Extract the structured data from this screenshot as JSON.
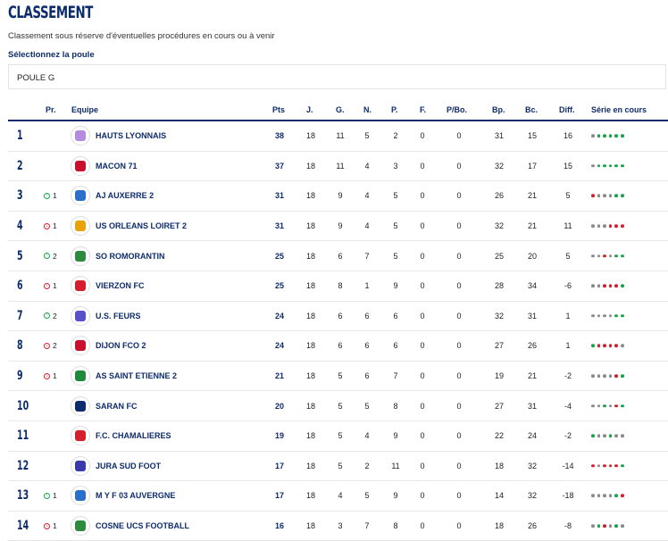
{
  "title": "CLASSEMENT",
  "subtitle": "Classement sous réserve d'éventuelles procédures en cours ou à venir",
  "poule": {
    "label": "Sélectionnez la poule",
    "selected": "POULE G"
  },
  "columns": {
    "pr": "Pr.",
    "equipe": "Equipe",
    "pts": "Pts",
    "j": "J.",
    "g": "G.",
    "n": "N.",
    "p": "P.",
    "f": "F.",
    "pbo": "P/Bo.",
    "bp": "Bp.",
    "bc": "Bc.",
    "diff": "Diff.",
    "serie": "Série en cours"
  },
  "colors": {
    "brand": "#0d2c6c",
    "win": "#19a34a",
    "draw": "#8a8a8a",
    "loss": "#d61f2c"
  },
  "rows": [
    {
      "rank": "1",
      "move": "",
      "dir": "",
      "team": "HAUTS LYONNAIS",
      "logo": "#b58be0",
      "pts": "38",
      "j": "18",
      "g": "11",
      "n": "5",
      "p": "2",
      "f": "0",
      "pbo": "0",
      "bp": "31",
      "bc": "15",
      "diff": "16",
      "serie": "DWWWWW"
    },
    {
      "rank": "2",
      "move": "",
      "dir": "",
      "team": "MACON 71",
      "logo": "#c8102e",
      "pts": "37",
      "j": "18",
      "g": "11",
      "n": "4",
      "p": "3",
      "f": "0",
      "pbo": "0",
      "bp": "32",
      "bc": "17",
      "diff": "15",
      "serie": "DWWWWW"
    },
    {
      "rank": "3",
      "move": "1",
      "dir": "up",
      "team": "AJ AUXERRE 2",
      "logo": "#2a6fc9",
      "pts": "31",
      "j": "18",
      "g": "9",
      "n": "4",
      "p": "5",
      "f": "0",
      "pbo": "0",
      "bp": "26",
      "bc": "21",
      "diff": "5",
      "serie": "LDDDWW"
    },
    {
      "rank": "4",
      "move": "1",
      "dir": "down",
      "team": "US ORLEANS LOIRET 2",
      "logo": "#e8a20c",
      "pts": "31",
      "j": "18",
      "g": "9",
      "n": "4",
      "p": "5",
      "f": "0",
      "pbo": "0",
      "bp": "32",
      "bc": "21",
      "diff": "11",
      "serie": "DDDLLL"
    },
    {
      "rank": "5",
      "move": "2",
      "dir": "up",
      "team": "SO ROMORANTIN",
      "logo": "#2e8b3d",
      "pts": "25",
      "j": "18",
      "g": "6",
      "n": "7",
      "p": "5",
      "f": "0",
      "pbo": "0",
      "bp": "25",
      "bc": "20",
      "diff": "5",
      "serie": "DDLDWW"
    },
    {
      "rank": "6",
      "move": "1",
      "dir": "down",
      "team": "VIERZON FC",
      "logo": "#d61f2c",
      "pts": "25",
      "j": "18",
      "g": "8",
      "n": "1",
      "p": "9",
      "f": "0",
      "pbo": "0",
      "bp": "28",
      "bc": "34",
      "diff": "-6",
      "serie": "DDLLLW"
    },
    {
      "rank": "7",
      "move": "2",
      "dir": "up",
      "team": "U.S. FEURS",
      "logo": "#5b4fc9",
      "pts": "24",
      "j": "18",
      "g": "6",
      "n": "6",
      "p": "6",
      "f": "0",
      "pbo": "0",
      "bp": "32",
      "bc": "31",
      "diff": "1",
      "serie": "DDDDWW"
    },
    {
      "rank": "8",
      "move": "2",
      "dir": "down",
      "team": "DIJON FCO 2",
      "logo": "#c8102e",
      "pts": "24",
      "j": "18",
      "g": "6",
      "n": "6",
      "p": "6",
      "f": "0",
      "pbo": "0",
      "bp": "27",
      "bc": "26",
      "diff": "1",
      "serie": "WLLLLD"
    },
    {
      "rank": "9",
      "move": "1",
      "dir": "down",
      "team": "AS SAINT ETIENNE 2",
      "logo": "#1f8a3b",
      "pts": "21",
      "j": "18",
      "g": "5",
      "n": "6",
      "p": "7",
      "f": "0",
      "pbo": "0",
      "bp": "19",
      "bc": "21",
      "diff": "-2",
      "serie": "DDDDLW"
    },
    {
      "rank": "10",
      "move": "",
      "dir": "",
      "team": "SARAN FC",
      "logo": "#0d2c6c",
      "pts": "20",
      "j": "18",
      "g": "5",
      "n": "5",
      "p": "8",
      "f": "0",
      "pbo": "0",
      "bp": "27",
      "bc": "31",
      "diff": "-4",
      "serie": "DDWDLW"
    },
    {
      "rank": "11",
      "move": "",
      "dir": "",
      "team": "F.C. CHAMALIERES",
      "logo": "#d61f2c",
      "pts": "19",
      "j": "18",
      "g": "5",
      "n": "4",
      "p": "9",
      "f": "0",
      "pbo": "0",
      "bp": "22",
      "bc": "24",
      "diff": "-2",
      "serie": "WDDWDD"
    },
    {
      "rank": "12",
      "move": "",
      "dir": "",
      "team": "JURA SUD FOOT",
      "logo": "#3a3aa8",
      "pts": "17",
      "j": "18",
      "g": "5",
      "n": "2",
      "p": "11",
      "f": "0",
      "pbo": "0",
      "bp": "18",
      "bc": "32",
      "diff": "-14",
      "serie": "LDLLLW"
    },
    {
      "rank": "13",
      "move": "1",
      "dir": "up",
      "team": "M Y F 03 AUVERGNE",
      "logo": "#2a6fc9",
      "pts": "17",
      "j": "18",
      "g": "4",
      "n": "5",
      "p": "9",
      "f": "0",
      "pbo": "0",
      "bp": "14",
      "bc": "32",
      "diff": "-18",
      "serie": "DDDDWL"
    },
    {
      "rank": "14",
      "move": "1",
      "dir": "down",
      "team": "COSNE UCS FOOTBALL",
      "logo": "#2e8b3d",
      "pts": "16",
      "j": "18",
      "g": "3",
      "n": "7",
      "p": "8",
      "f": "0",
      "pbo": "0",
      "bp": "18",
      "bc": "26",
      "diff": "-8",
      "serie": "DWLDWD"
    }
  ]
}
